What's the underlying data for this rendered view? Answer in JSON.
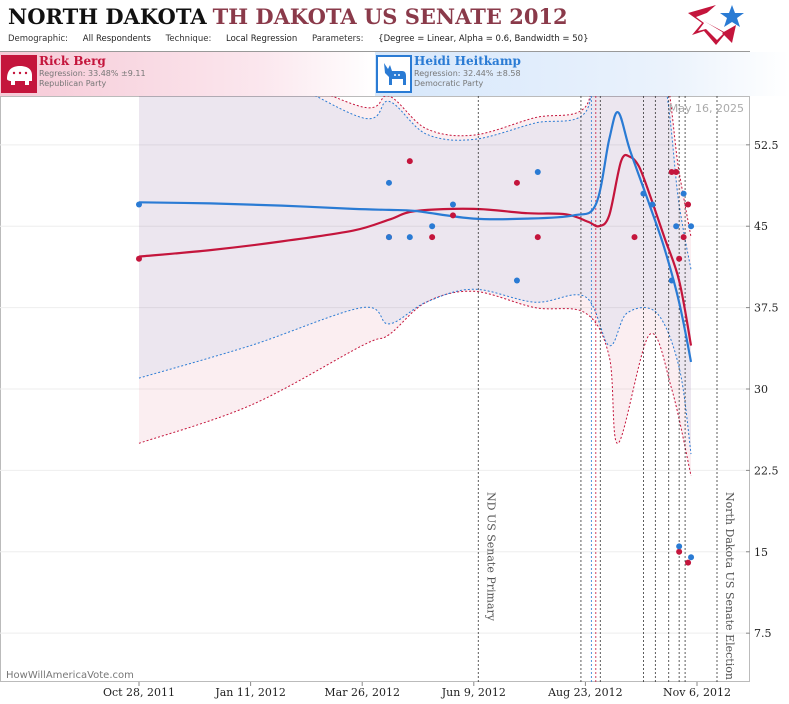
{
  "header": {
    "title_main": "NORTH DAKOTA",
    "title_sub": "TH DAKOTA US SENATE 2012",
    "demographic_label": "Demographic:",
    "demographic_value": "All Respondents",
    "technique_label": "Technique:",
    "technique_value": "Local Regression",
    "parameters_label": "Parameters:",
    "parameters_value": "{Degree = Linear, Alpha = 0.6, Bandwidth = 50}"
  },
  "candidates": [
    {
      "name": "Rick Berg",
      "regression": "Regression: 33.48% ±9.11",
      "party": "Republican Party",
      "color": "#c4153c",
      "icon": "elephant-icon"
    },
    {
      "name": "Heidi Heitkamp",
      "regression": "Regression: 32.44% ±8.58",
      "party": "Democratic Party",
      "color": "#2a7bd4",
      "icon": "donkey-icon"
    }
  ],
  "watermark": "HowWillAmericaVote.com",
  "date_label": "May 16, 2025",
  "chart_data": {
    "type": "line",
    "title": "NORTH DAKOTA US SENATE 2012",
    "x_range": [
      "2011-10-28",
      "2012-11-06"
    ],
    "ylim": [
      3,
      57
    ],
    "y_ticks": [
      52.5,
      45,
      37.5,
      30,
      22.5,
      15,
      7.5
    ],
    "y_tick_labels": [
      "52.5",
      "45",
      "37.5",
      "30",
      "22.5",
      "15",
      "7.5"
    ],
    "x_ticks": [
      "2011-10-28",
      "2012-01-11",
      "2012-03-26",
      "2012-06-09",
      "2012-08-23",
      "2012-11-06"
    ],
    "x_tick_labels": [
      "Oct 28, 2011",
      "Jan 11, 2012",
      "Mar 26, 2012",
      "Jun 9, 2012",
      "Aug 23, 2012",
      "Nov 6, 2012"
    ],
    "annotations": [
      {
        "date": "2012-06-12",
        "label": "ND US Senate Primary"
      },
      {
        "date": "2012-11-06",
        "label": "North Dakota US Senate Election"
      }
    ],
    "event_lines": [
      "2012-08-20",
      "2012-08-27",
      "2012-08-30",
      "2012-09-02",
      "2012-10-01",
      "2012-10-09",
      "2012-10-18",
      "2012-10-25",
      "2012-10-29"
    ],
    "series": [
      {
        "name": "Rick Berg",
        "color": "#c4153c",
        "points": [
          {
            "date": "2011-10-28",
            "value": 42
          },
          {
            "date": "2012-04-13",
            "value": 44
          },
          {
            "date": "2012-04-27",
            "value": 51
          },
          {
            "date": "2012-05-12",
            "value": 44
          },
          {
            "date": "2012-05-26",
            "value": 46
          },
          {
            "date": "2012-07-08",
            "value": 49
          },
          {
            "date": "2012-07-22",
            "value": 44
          },
          {
            "date": "2012-09-25",
            "value": 44
          },
          {
            "date": "2012-10-20",
            "value": 50
          },
          {
            "date": "2012-10-23",
            "value": 50
          },
          {
            "date": "2012-10-25",
            "value": 42
          },
          {
            "date": "2012-10-28",
            "value": 44
          },
          {
            "date": "2012-10-31",
            "value": 47
          },
          {
            "date": "2012-10-25",
            "value": 15
          },
          {
            "date": "2012-10-31",
            "value": 14
          }
        ],
        "trend": [
          {
            "date": "2011-10-28",
            "value": 42.2
          },
          {
            "date": "2011-12-15",
            "value": 42.8
          },
          {
            "date": "2012-02-01",
            "value": 43.6
          },
          {
            "date": "2012-03-20",
            "value": 44.6
          },
          {
            "date": "2012-04-13",
            "value": 45.6
          },
          {
            "date": "2012-05-01",
            "value": 46.4
          },
          {
            "date": "2012-06-09",
            "value": 46.6
          },
          {
            "date": "2012-07-15",
            "value": 46.2
          },
          {
            "date": "2012-08-10",
            "value": 46.1
          },
          {
            "date": "2012-08-25",
            "value": 45.4
          },
          {
            "date": "2012-09-01",
            "value": 45.0
          },
          {
            "date": "2012-09-08",
            "value": 46.0
          },
          {
            "date": "2012-09-16",
            "value": 51.0
          },
          {
            "date": "2012-09-22",
            "value": 51.4
          },
          {
            "date": "2012-09-28",
            "value": 50.5
          },
          {
            "date": "2012-10-05",
            "value": 48.0
          },
          {
            "date": "2012-10-15",
            "value": 44.0
          },
          {
            "date": "2012-10-25",
            "value": 40.0
          },
          {
            "date": "2012-11-02",
            "value": 34.0
          }
        ],
        "band_upper": [
          {
            "date": "2011-10-28",
            "value": 62
          },
          {
            "date": "2012-01-11",
            "value": 60
          },
          {
            "date": "2012-03-26",
            "value": 56
          },
          {
            "date": "2012-04-13",
            "value": 57
          },
          {
            "date": "2012-05-08",
            "value": 54
          },
          {
            "date": "2012-06-09",
            "value": 53.4
          },
          {
            "date": "2012-07-20",
            "value": 55
          },
          {
            "date": "2012-08-23",
            "value": 56
          },
          {
            "date": "2012-09-02",
            "value": 62
          },
          {
            "date": "2012-10-10",
            "value": 62
          },
          {
            "date": "2012-10-25",
            "value": 50
          },
          {
            "date": "2012-11-02",
            "value": 44
          }
        ],
        "band_lower": [
          {
            "date": "2011-10-28",
            "value": 25
          },
          {
            "date": "2012-01-11",
            "value": 28.5
          },
          {
            "date": "2012-03-26",
            "value": 34
          },
          {
            "date": "2012-04-13",
            "value": 35
          },
          {
            "date": "2012-05-08",
            "value": 38
          },
          {
            "date": "2012-06-09",
            "value": 39
          },
          {
            "date": "2012-07-20",
            "value": 37.5
          },
          {
            "date": "2012-08-23",
            "value": 37
          },
          {
            "date": "2012-09-08",
            "value": 33
          },
          {
            "date": "2012-09-14",
            "value": 25
          },
          {
            "date": "2012-10-05",
            "value": 35
          },
          {
            "date": "2012-10-20",
            "value": 30
          },
          {
            "date": "2012-11-02",
            "value": 22
          }
        ]
      },
      {
        "name": "Heidi Heitkamp",
        "color": "#2a7bd4",
        "points": [
          {
            "date": "2011-10-28",
            "value": 47
          },
          {
            "date": "2012-04-13",
            "value": 49
          },
          {
            "date": "2012-04-13",
            "value": 44
          },
          {
            "date": "2012-04-27",
            "value": 44
          },
          {
            "date": "2012-05-12",
            "value": 45
          },
          {
            "date": "2012-05-26",
            "value": 47
          },
          {
            "date": "2012-07-08",
            "value": 40
          },
          {
            "date": "2012-07-22",
            "value": 50
          },
          {
            "date": "2012-10-01",
            "value": 48
          },
          {
            "date": "2012-10-07",
            "value": 47
          },
          {
            "date": "2012-10-20",
            "value": 40
          },
          {
            "date": "2012-10-23",
            "value": 45
          },
          {
            "date": "2012-10-28",
            "value": 48
          },
          {
            "date": "2012-11-02",
            "value": 45
          },
          {
            "date": "2012-10-25",
            "value": 15.5
          },
          {
            "date": "2012-11-02",
            "value": 14.5
          }
        ],
        "trend": [
          {
            "date": "2011-10-28",
            "value": 47.2
          },
          {
            "date": "2011-12-15",
            "value": 47.1
          },
          {
            "date": "2012-02-01",
            "value": 46.9
          },
          {
            "date": "2012-03-20",
            "value": 46.6
          },
          {
            "date": "2012-04-13",
            "value": 46.5
          },
          {
            "date": "2012-05-01",
            "value": 46.4
          },
          {
            "date": "2012-06-09",
            "value": 45.7
          },
          {
            "date": "2012-07-15",
            "value": 45.7
          },
          {
            "date": "2012-08-15",
            "value": 46.0
          },
          {
            "date": "2012-08-30",
            "value": 47.0
          },
          {
            "date": "2012-09-08",
            "value": 53.0
          },
          {
            "date": "2012-09-14",
            "value": 55.5
          },
          {
            "date": "2012-09-22",
            "value": 52.0
          },
          {
            "date": "2012-10-05",
            "value": 47.0
          },
          {
            "date": "2012-10-15",
            "value": 43.0
          },
          {
            "date": "2012-10-25",
            "value": 38.0
          },
          {
            "date": "2012-11-02",
            "value": 32.5
          }
        ],
        "band_upper": [
          {
            "date": "2011-10-28",
            "value": 63
          },
          {
            "date": "2012-01-11",
            "value": 60
          },
          {
            "date": "2012-03-26",
            "value": 55
          },
          {
            "date": "2012-04-13",
            "value": 56.5
          },
          {
            "date": "2012-05-08",
            "value": 53.5
          },
          {
            "date": "2012-06-09",
            "value": 53
          },
          {
            "date": "2012-07-20",
            "value": 54.5
          },
          {
            "date": "2012-08-23",
            "value": 55.5
          },
          {
            "date": "2012-09-02",
            "value": 62
          },
          {
            "date": "2012-10-10",
            "value": 61
          },
          {
            "date": "2012-10-25",
            "value": 47
          },
          {
            "date": "2012-11-02",
            "value": 41
          }
        ],
        "band_lower": [
          {
            "date": "2011-10-28",
            "value": 31
          },
          {
            "date": "2012-01-11",
            "value": 34
          },
          {
            "date": "2012-03-26",
            "value": 37.5
          },
          {
            "date": "2012-04-13",
            "value": 36
          },
          {
            "date": "2012-05-08",
            "value": 38
          },
          {
            "date": "2012-06-09",
            "value": 39.2
          },
          {
            "date": "2012-07-20",
            "value": 38
          },
          {
            "date": "2012-08-23",
            "value": 38.5
          },
          {
            "date": "2012-09-08",
            "value": 34
          },
          {
            "date": "2012-09-20",
            "value": 37
          },
          {
            "date": "2012-10-10",
            "value": 37
          },
          {
            "date": "2012-10-25",
            "value": 32
          },
          {
            "date": "2012-11-02",
            "value": 24
          }
        ]
      }
    ]
  }
}
